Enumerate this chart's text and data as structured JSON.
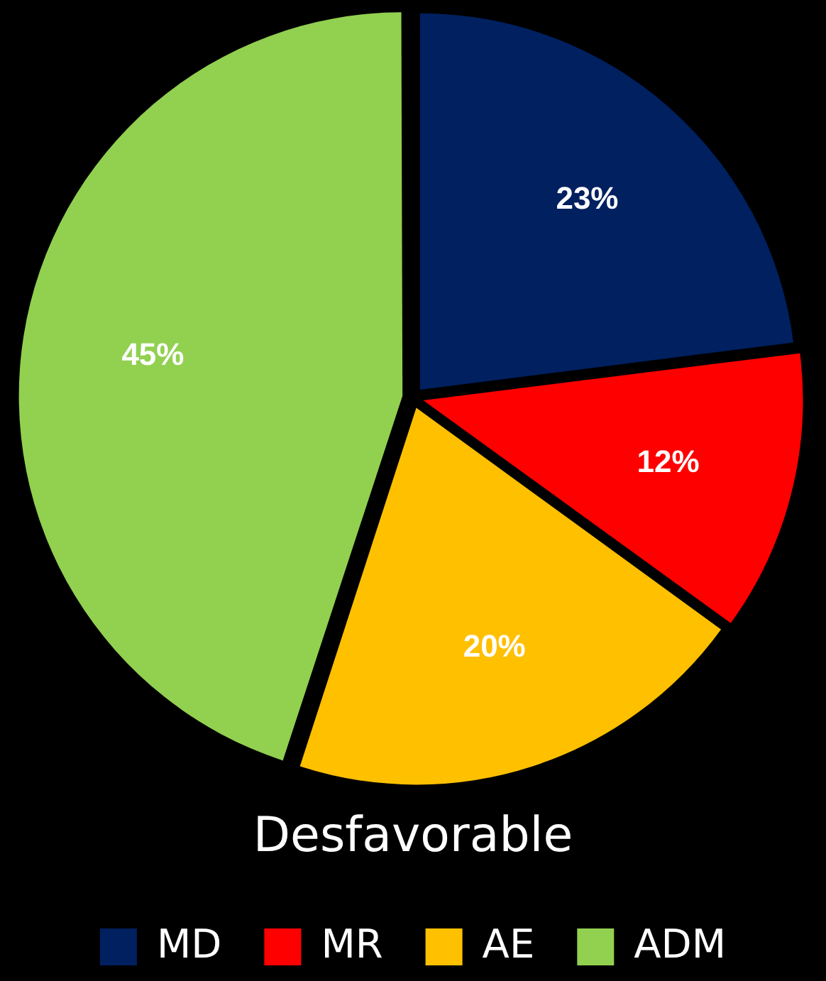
{
  "chart_data": {
    "type": "pie",
    "title": "Desfavorable",
    "categories": [
      "MD",
      "MR",
      "AE",
      "ADM"
    ],
    "values": [
      23,
      12,
      20,
      45
    ],
    "colors": [
      "#002060",
      "#ff0000",
      "#ffc000",
      "#92d050"
    ],
    "value_labels": [
      "23%",
      "12%",
      "20%",
      "45%"
    ],
    "legend": "bottom"
  }
}
